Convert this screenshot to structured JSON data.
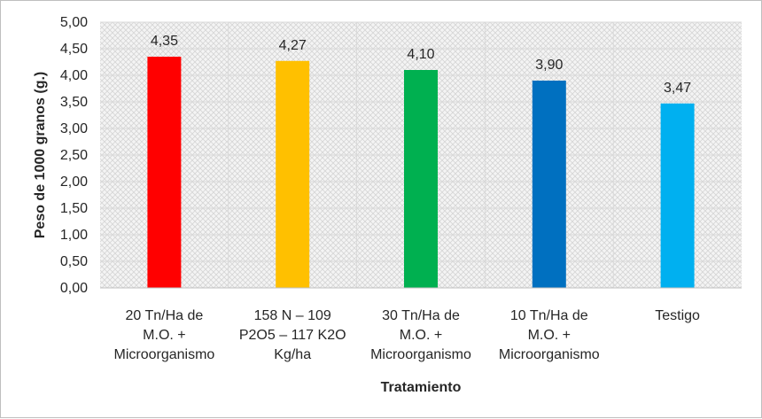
{
  "chart_data": {
    "type": "bar",
    "title": "",
    "xlabel": "Tratamiento",
    "ylabel": "Peso de 1000 granos (g.)",
    "ylim": [
      0,
      5
    ],
    "ytick_step": 0.5,
    "ytick_labels": [
      "0,00",
      "0,50",
      "1,00",
      "1,50",
      "2,00",
      "2,50",
      "3,00",
      "3,50",
      "4,00",
      "4,50",
      "5,00"
    ],
    "grid": true,
    "legend": "none",
    "categories": [
      [
        "20 Tn/Ha de",
        "M.O. +",
        "Microorganismo"
      ],
      [
        "158 N – 109",
        "P2O5 – 117 K2O",
        "Kg/ha"
      ],
      [
        "30 Tn/Ha de",
        "M.O. +",
        "Microorganismo"
      ],
      [
        "10 Tn/Ha de",
        "M.O. +",
        "Microorganismo"
      ],
      [
        "Testigo"
      ]
    ],
    "values": [
      4.35,
      4.27,
      4.1,
      3.9,
      3.47
    ],
    "data_labels": [
      "4,35",
      "4,27",
      "4,10",
      "3,90",
      "3,47"
    ],
    "colors": [
      "#ff0000",
      "#ffc000",
      "#00b050",
      "#0070c0",
      "#00b0f0"
    ],
    "plot_background": "#f2f2f2",
    "gridline_color": "#d9d9d9"
  }
}
